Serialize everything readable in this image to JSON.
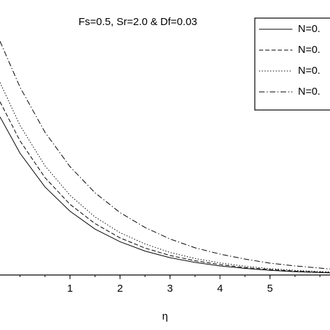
{
  "chart_data": {
    "type": "line",
    "annotation": "Fs=0.5, Sr=2.0 & Df=0.03",
    "x_label": "η",
    "x": [
      -0.4,
      0,
      0.5,
      1,
      1.5,
      2,
      2.5,
      3,
      3.5,
      4,
      4.5,
      5,
      5.5,
      6.2
    ],
    "xlim": [
      -0.4,
      6.2
    ],
    "xticks": [
      1,
      2,
      3,
      4,
      5
    ],
    "ylim": [
      0,
      1
    ],
    "legend": "upper right",
    "series": [
      {
        "name": "N=0.",
        "color": "#000000",
        "dash": "solid",
        "values": [
          0.575,
          0.443,
          0.32,
          0.232,
          0.167,
          0.121,
          0.087,
          0.063,
          0.046,
          0.033,
          0.024,
          0.017,
          0.012,
          0.008
        ]
      },
      {
        "name": "N=0.",
        "color": "#000000",
        "dash": "dashed",
        "values": [
          0.63,
          0.488,
          0.354,
          0.257,
          0.187,
          0.135,
          0.098,
          0.071,
          0.052,
          0.038,
          0.027,
          0.02,
          0.014,
          0.009
        ]
      },
      {
        "name": "N=0.",
        "color": "#000000",
        "dash": "dotted",
        "values": [
          0.7,
          0.544,
          0.397,
          0.29,
          0.211,
          0.154,
          0.113,
          0.082,
          0.06,
          0.044,
          0.032,
          0.023,
          0.017,
          0.011
        ]
      },
      {
        "name": "N=0.",
        "color": "#000000",
        "dash": "dashdot",
        "values": [
          0.85,
          0.683,
          0.519,
          0.394,
          0.299,
          0.227,
          0.173,
          0.131,
          0.099,
          0.076,
          0.058,
          0.043,
          0.033,
          0.022
        ]
      }
    ]
  }
}
